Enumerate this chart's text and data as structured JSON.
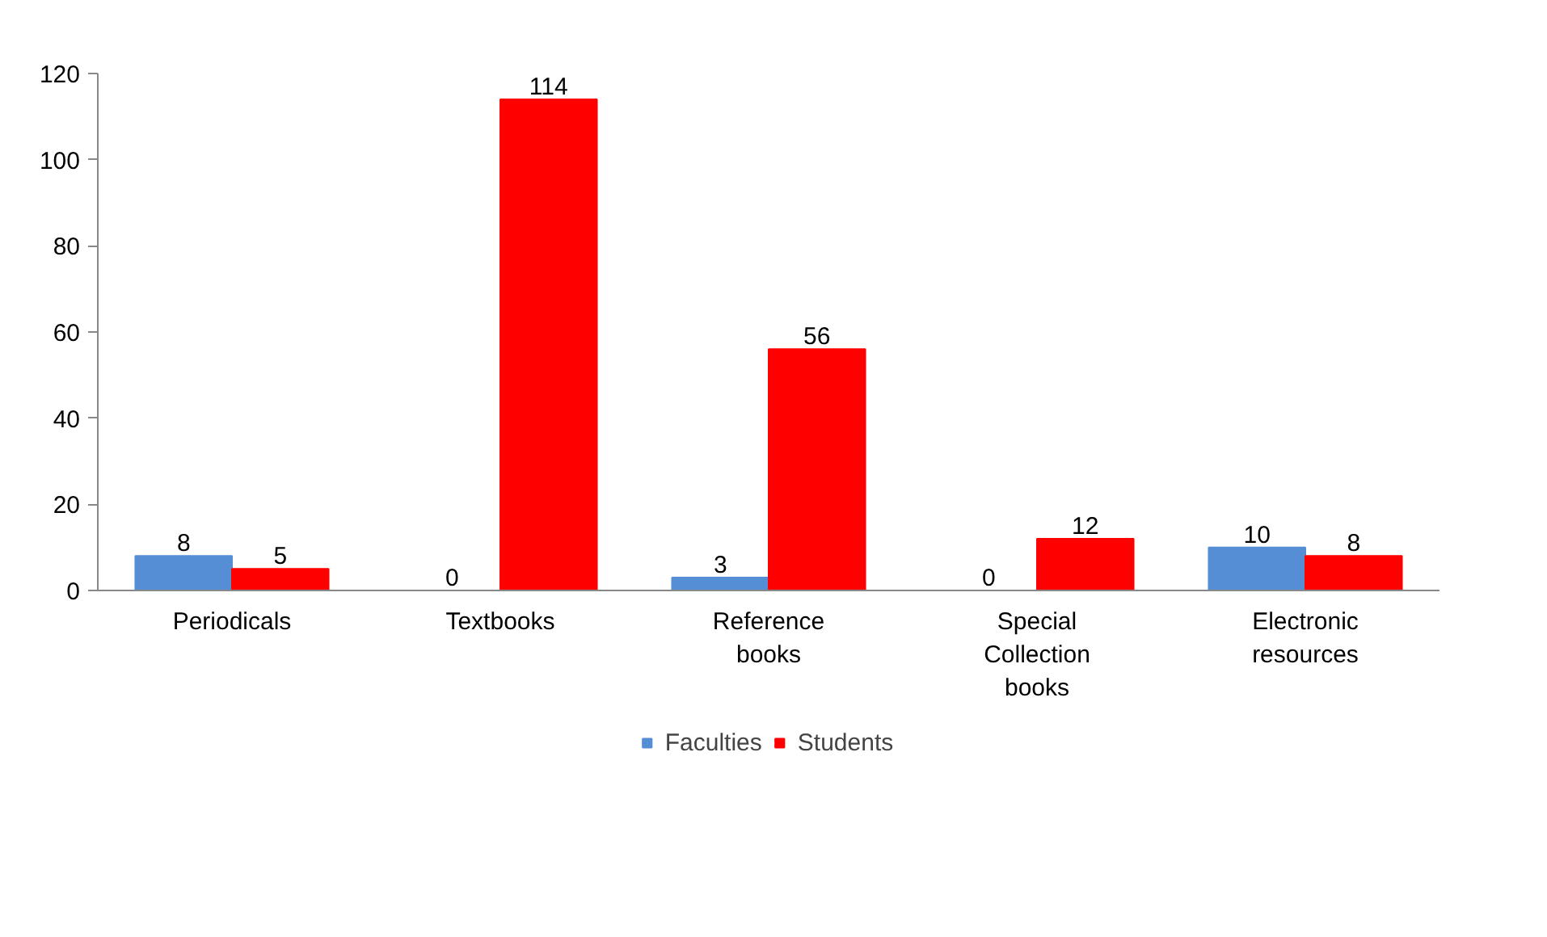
{
  "chart_data": {
    "type": "bar",
    "categories": [
      "Periodicals",
      "Textbooks",
      "Reference books",
      "Special Collection books",
      "Electronic resources"
    ],
    "series": [
      {
        "name": "Faculties",
        "color": "#558ed5",
        "values": [
          8,
          0,
          3,
          0,
          10
        ]
      },
      {
        "name": "Students",
        "color": "#ff0000",
        "values": [
          5,
          114,
          56,
          12,
          8
        ]
      }
    ],
    "ylim": [
      0,
      120
    ],
    "yticks": [
      0,
      20,
      40,
      60,
      80,
      100,
      120
    ],
    "grid": false,
    "legend": "bottom",
    "data_labels": true
  }
}
